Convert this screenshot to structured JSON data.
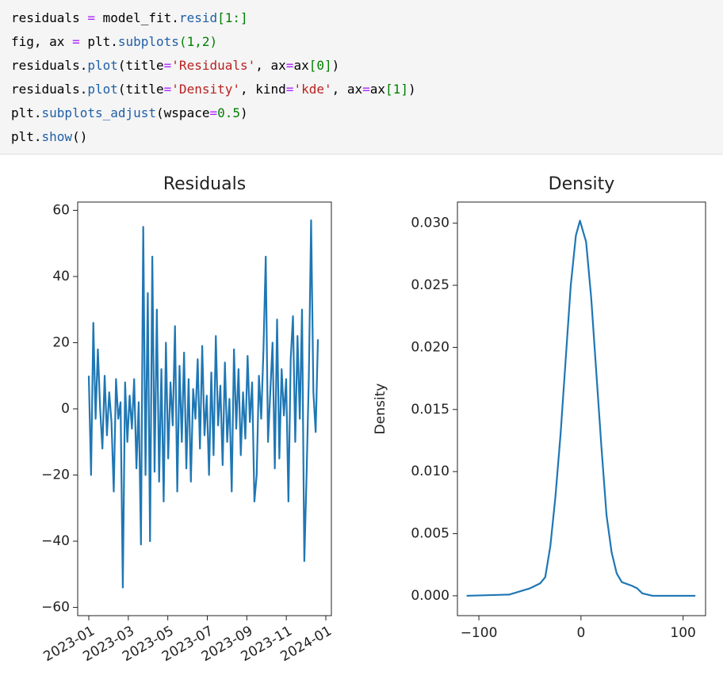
{
  "code": {
    "lines": [
      [
        {
          "text": "residuals ",
          "color": "#000"
        },
        {
          "text": "=",
          "color": "#aa22ff"
        },
        {
          "text": " model_fit.",
          "color": "#000"
        },
        {
          "text": "resid",
          "color": "#1f5fa8"
        },
        {
          "text": "[1:]",
          "color": "#008000"
        }
      ],
      [
        {
          "text": "fig, ax ",
          "color": "#000"
        },
        {
          "text": "=",
          "color": "#aa22ff"
        },
        {
          "text": " plt.",
          "color": "#000"
        },
        {
          "text": "subplots",
          "color": "#1f5fa8"
        },
        {
          "text": "(1,2)",
          "color": "#008000"
        }
      ],
      [
        {
          "text": "residuals.",
          "color": "#000"
        },
        {
          "text": "plot",
          "color": "#1f5fa8"
        },
        {
          "text": "(title",
          "color": "#000"
        },
        {
          "text": "=",
          "color": "#aa22ff"
        },
        {
          "text": "'Residuals'",
          "color": "#ba2121"
        },
        {
          "text": ", ax",
          "color": "#000"
        },
        {
          "text": "=",
          "color": "#aa22ff"
        },
        {
          "text": "ax",
          "color": "#000"
        },
        {
          "text": "[0]",
          "color": "#008000"
        },
        {
          "text": ")",
          "color": "#000"
        }
      ],
      [
        {
          "text": "residuals.",
          "color": "#000"
        },
        {
          "text": "plot",
          "color": "#1f5fa8"
        },
        {
          "text": "(title",
          "color": "#000"
        },
        {
          "text": "=",
          "color": "#aa22ff"
        },
        {
          "text": "'Density'",
          "color": "#ba2121"
        },
        {
          "text": ", kind",
          "color": "#000"
        },
        {
          "text": "=",
          "color": "#aa22ff"
        },
        {
          "text": "'kde'",
          "color": "#ba2121"
        },
        {
          "text": ", ax",
          "color": "#000"
        },
        {
          "text": "=",
          "color": "#aa22ff"
        },
        {
          "text": "ax",
          "color": "#000"
        },
        {
          "text": "[1]",
          "color": "#008000"
        },
        {
          "text": ")",
          "color": "#000"
        }
      ],
      [
        {
          "text": "plt.",
          "color": "#000"
        },
        {
          "text": "subplots_adjust",
          "color": "#1f5fa8"
        },
        {
          "text": "(wspace",
          "color": "#000"
        },
        {
          "text": "=",
          "color": "#aa22ff"
        },
        {
          "text": "0.5",
          "color": "#008000"
        },
        {
          "text": ")",
          "color": "#000"
        }
      ],
      [
        {
          "text": "plt.",
          "color": "#000"
        },
        {
          "text": "show",
          "color": "#1f5fa8"
        },
        {
          "text": "()",
          "color": "#000"
        }
      ]
    ]
  },
  "chart_data": [
    {
      "type": "line",
      "title": "Residuals",
      "color": "#1f77b4",
      "values": [
        10,
        -20,
        26,
        -3,
        18,
        0,
        -12,
        10,
        -8,
        5,
        -4,
        -25,
        9,
        -3,
        2,
        -54,
        8,
        -10,
        4,
        -6,
        9,
        -18,
        2,
        -41,
        55,
        -20,
        35,
        -40,
        46,
        -19,
        30,
        -22,
        12,
        -28,
        20,
        -15,
        8,
        -5,
        25,
        -25,
        13,
        -10,
        17,
        -18,
        9,
        -22,
        6,
        -3,
        15,
        -12,
        19,
        -8,
        4,
        -20,
        11,
        -14,
        22,
        -5,
        7,
        -17,
        14,
        -10,
        3,
        -25,
        18,
        -6,
        12,
        -14,
        5,
        -9,
        16,
        -4,
        8,
        -28,
        -20,
        10,
        -3,
        18,
        46,
        -10,
        5,
        20,
        -18,
        27,
        -15,
        12,
        -2,
        9,
        -28,
        15,
        28,
        -10,
        22,
        -3,
        30,
        -46,
        -20,
        10,
        57,
        5,
        -7,
        21
      ],
      "ylim": [
        -62.5,
        62.5
      ],
      "yticks": [
        {
          "value": -60,
          "label": "−60"
        },
        {
          "value": -40,
          "label": "−40"
        },
        {
          "value": -20,
          "label": "−20"
        },
        0,
        20,
        40,
        60
      ],
      "xticks": [
        "2023-01",
        "2023-03",
        "2023-05",
        "2023-07",
        "2023-09",
        "2023-11",
        "2024-01"
      ]
    },
    {
      "type": "kde",
      "title": "Density",
      "ylabel": "Density",
      "color": "#1f77b4",
      "x": [
        -112,
        -70,
        -50,
        -40,
        -35,
        -30,
        -25,
        -20,
        -15,
        -10,
        -5,
        -1,
        5,
        10,
        15,
        20,
        25,
        30,
        35,
        40,
        50,
        55,
        60,
        70,
        112
      ],
      "values": [
        0,
        0.0001,
        0.0006,
        0.001,
        0.0015,
        0.004,
        0.008,
        0.013,
        0.019,
        0.025,
        0.029,
        0.0302,
        0.0285,
        0.024,
        0.018,
        0.012,
        0.0065,
        0.0035,
        0.0018,
        0.0011,
        0.0008,
        0.0006,
        0.0002,
        0,
        0
      ],
      "xlim": [
        -121,
        122
      ],
      "ylim": [
        -0.0016,
        0.0317
      ],
      "xticks": [
        {
          "value": -100,
          "label": "−100"
        },
        0,
        100
      ],
      "yticks": [
        {
          "value": 0,
          "label": "0.000"
        },
        {
          "value": 0.005,
          "label": "0.005"
        },
        {
          "value": 0.01,
          "label": "0.010"
        },
        {
          "value": 0.015,
          "label": "0.015"
        },
        {
          "value": 0.02,
          "label": "0.020"
        },
        {
          "value": 0.025,
          "label": "0.025"
        },
        {
          "value": 0.03,
          "label": "0.030"
        }
      ]
    }
  ]
}
